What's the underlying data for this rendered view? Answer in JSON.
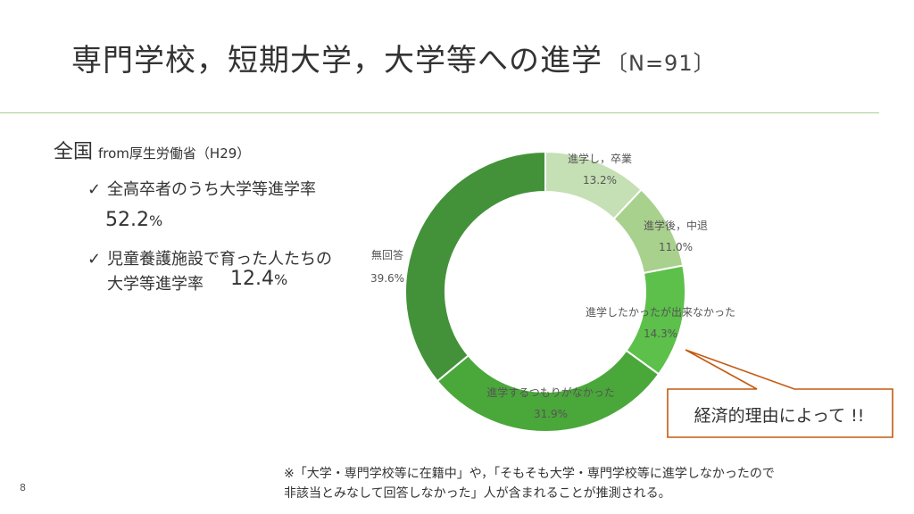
{
  "slide": {
    "title": "専門学校，短期大学，大学等への進学",
    "title_sub": "〔N=91〕",
    "page_number": "8"
  },
  "national": {
    "heading": "全国",
    "source": "from厚生労働省（H29）",
    "items": [
      {
        "check": "✓",
        "label": "全高卒者のうち大学等進学率",
        "value": "52.2",
        "unit": "%"
      },
      {
        "check": "✓",
        "label_line1": "児童養護施設で育った人たちの",
        "label_line2": "大学等進学率",
        "value": "12.4",
        "unit": "%"
      }
    ]
  },
  "chart_data": {
    "type": "pie",
    "donut": true,
    "categories": [
      "進学し，卒業",
      "進学後，中退",
      "進学したかったが出来なかった",
      "進学するつもりがなかった",
      "無回答"
    ],
    "values": [
      13.2,
      11.0,
      14.3,
      31.9,
      39.6
    ],
    "value_labels": [
      "13.2%",
      "11.0%",
      "14.3%",
      "31.9%",
      "39.6%"
    ],
    "colors": [
      "#c5e0b4",
      "#a9d18e",
      "#5cc04a",
      "#4aa83a",
      "#43923a"
    ],
    "start_angle_deg": 0,
    "direction": "clockwise"
  },
  "callout": {
    "text": "経済的理由によって !!",
    "border_color": "#c55a11"
  },
  "footnote": {
    "line1": "※「大学・専門学校等に在籍中」や，「そもそも大学・専門学校等に進学しなかったので",
    "line2": "非該当とみなして回答しなかった」人が含まれることが推測される。"
  }
}
